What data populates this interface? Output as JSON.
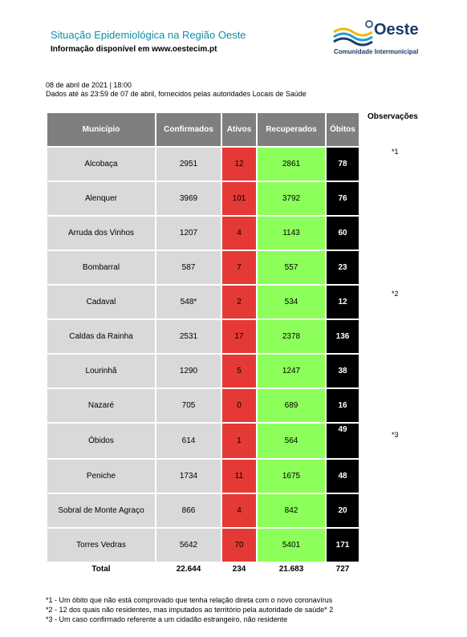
{
  "header": {
    "title": "Situação Epidemiológica na Região Oeste",
    "subtitle": "Informação disponível em www.oestecim.pt"
  },
  "logo": {
    "name": "Oeste",
    "tagline": "Comunidade Intermunicipal"
  },
  "report": {
    "date": "08 de abril de 2021 | 18:00",
    "source_note": "Dados até às 23:59 de 07 de abril, fornecidos pelas autoridades Locais de Saúde"
  },
  "table": {
    "headers": [
      "Município",
      "Confirmados",
      "Ativos",
      "Recuperados",
      "Óbitos"
    ],
    "rows": [
      [
        "Alcobaça",
        "2951",
        "12",
        "2861",
        "78"
      ],
      [
        "Alenquer",
        "3969",
        "101",
        "3792",
        "76"
      ],
      [
        "Arruda dos Vinhos",
        "1207",
        "4",
        "1143",
        "60"
      ],
      [
        "Bombarral",
        "587",
        "7",
        "557",
        "23"
      ],
      [
        "Cadaval",
        "548*",
        "2",
        "534",
        "12"
      ],
      [
        "Caldas da Rainha",
        "2531",
        "17",
        "2378",
        "136"
      ],
      [
        "Lourinhã",
        "1290",
        "5",
        "1247",
        "38"
      ],
      [
        "Nazaré",
        "705",
        "0",
        "689",
        "16"
      ],
      [
        "Óbidos",
        "614",
        "1",
        "564",
        "49"
      ],
      [
        "Peniche",
        "1734",
        "11",
        "1675",
        "48"
      ],
      [
        "Sobral de Monte Agraço",
        "866",
        "4",
        "842",
        "20"
      ],
      [
        "Torres Vedras",
        "5642",
        "70",
        "5401",
        "171"
      ]
    ],
    "total": [
      "Total",
      "22.644",
      "234",
      "21.683",
      "727"
    ]
  },
  "observations": {
    "title": "Observações",
    "marks": [
      "*1",
      "*2",
      "*3"
    ]
  },
  "footnotes": [
    "*1 - Um óbito que não está comprovado que tenha relação direta com o novo coronavírus",
    "*2 - 12 dos quais não residentes, mas imputados ao território pela autoridade de saúde* 2",
    "*3 - Um caso confirmado referente a um cidadão estrangeiro, não residente"
  ],
  "colors": {
    "title": "#0e8fa6",
    "header_bg": "#7f7f7f",
    "cell_grey": "#d9d9d9",
    "active_red": "#e53935",
    "recovered_green": "#8cff5a",
    "deaths_black": "#000000"
  }
}
